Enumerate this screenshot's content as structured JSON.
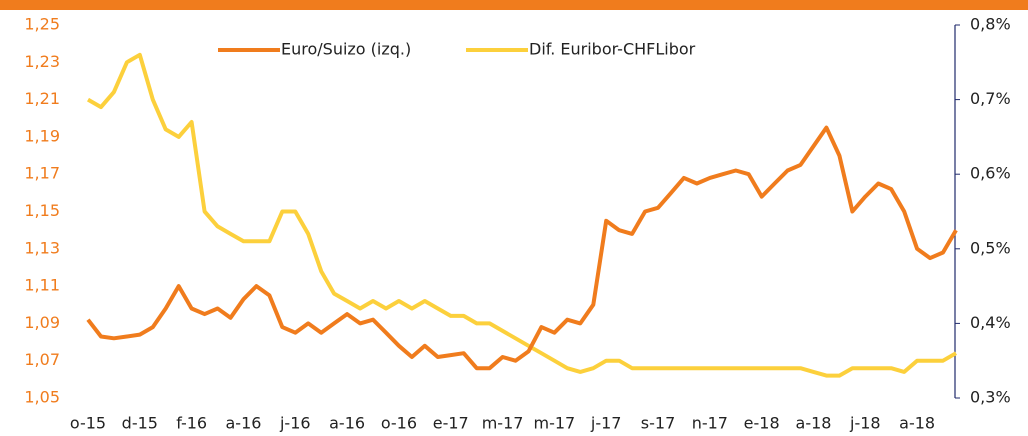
{
  "chart_data": {
    "type": "line",
    "categories": [
      "o-15",
      null,
      null,
      null,
      "d-15",
      null,
      null,
      null,
      "f-16",
      null,
      null,
      null,
      "a-16",
      null,
      null,
      null,
      "j-16",
      null,
      null,
      null,
      "a-16",
      null,
      null,
      null,
      "o-16",
      null,
      null,
      null,
      "e-17",
      null,
      null,
      null,
      "m-17",
      null,
      null,
      null,
      "m-17",
      null,
      null,
      null,
      "j-17",
      null,
      null,
      null,
      "s-17",
      null,
      null,
      null,
      "n-17",
      null,
      null,
      null,
      "e-18",
      null,
      null,
      null,
      "a-18",
      null,
      null,
      null,
      "j-18",
      null,
      null,
      null,
      "a-18",
      null,
      null,
      null
    ],
    "series": [
      {
        "name": "Euro/Suizo (izq.)",
        "color": "#f07c1d",
        "axis": "y",
        "values": [
          1.092,
          1.083,
          1.082,
          1.083,
          1.084,
          1.088,
          1.098,
          1.11,
          1.098,
          1.095,
          1.098,
          1.093,
          1.103,
          1.11,
          1.105,
          1.088,
          1.085,
          1.09,
          1.085,
          1.09,
          1.095,
          1.09,
          1.092,
          1.085,
          1.078,
          1.072,
          1.078,
          1.072,
          1.073,
          1.074,
          1.066,
          1.066,
          1.072,
          1.07,
          1.075,
          1.088,
          1.085,
          1.092,
          1.09,
          1.1,
          1.145,
          1.14,
          1.138,
          1.15,
          1.152,
          1.16,
          1.168,
          1.165,
          1.168,
          1.17,
          1.172,
          1.17,
          1.158,
          1.165,
          1.172,
          1.175,
          1.185,
          1.195,
          1.18,
          1.15,
          1.158,
          1.165,
          1.162,
          1.15,
          1.13,
          1.125,
          1.128,
          1.14
        ]
      },
      {
        "name": "Dif. Euribor-CHFLibor",
        "color": "#fcd03c",
        "axis": "y2",
        "values": [
          0.7,
          0.69,
          0.71,
          0.75,
          0.76,
          0.7,
          0.66,
          0.65,
          0.67,
          0.55,
          0.53,
          0.52,
          0.51,
          0.51,
          0.51,
          0.55,
          0.55,
          0.52,
          0.47,
          0.44,
          0.43,
          0.42,
          0.43,
          0.42,
          0.43,
          0.42,
          0.43,
          0.42,
          0.41,
          0.41,
          0.4,
          0.4,
          0.39,
          0.38,
          0.37,
          0.36,
          0.35,
          0.34,
          0.335,
          0.34,
          0.35,
          0.35,
          0.34,
          0.34,
          0.34,
          0.34,
          0.34,
          0.34,
          0.34,
          0.34,
          0.34,
          0.34,
          0.34,
          0.34,
          0.34,
          0.34,
          0.335,
          0.33,
          0.33,
          0.34,
          0.34,
          0.34,
          0.34,
          0.335,
          0.35,
          0.35,
          0.35,
          0.36
        ]
      }
    ],
    "ylim": [
      1.05,
      1.25
    ],
    "yticks": [
      {
        "value": 1.05,
        "label": "1,05"
      },
      {
        "value": 1.07,
        "label": "1,07"
      },
      {
        "value": 1.09,
        "label": "1,09"
      },
      {
        "value": 1.11,
        "label": "1,11"
      },
      {
        "value": 1.13,
        "label": "1,13"
      },
      {
        "value": 1.15,
        "label": "1,15"
      },
      {
        "value": 1.17,
        "label": "1,17"
      },
      {
        "value": 1.19,
        "label": "1,19"
      },
      {
        "value": 1.21,
        "label": "1,21"
      },
      {
        "value": 1.23,
        "label": "1,23"
      },
      {
        "value": 1.25,
        "label": "1,25"
      }
    ],
    "y2lim": [
      0.3,
      0.8
    ],
    "y2ticks": [
      {
        "value": 0.3,
        "label": "0,3%"
      },
      {
        "value": 0.4,
        "label": "0,4%"
      },
      {
        "value": 0.5,
        "label": "0,5%"
      },
      {
        "value": 0.6,
        "label": "0,6%"
      },
      {
        "value": 0.7,
        "label": "0,7%"
      },
      {
        "value": 0.8,
        "label": "0,8%"
      }
    ],
    "legend": "top",
    "grid": false
  }
}
